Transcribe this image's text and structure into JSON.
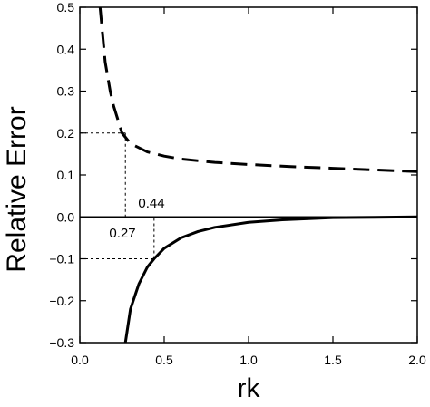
{
  "chart_data": {
    "type": "line",
    "xlabel": "rk",
    "ylabel": "Relative Error",
    "xlim": [
      0.0,
      2.0
    ],
    "ylim": [
      -0.3,
      0.5
    ],
    "x_ticks": [
      0.0,
      0.5,
      1.0,
      1.5,
      2.0
    ],
    "x_tick_labels": [
      "0.0",
      "0.5",
      "1.0",
      "1.5",
      "2.0"
    ],
    "y_ticks": [
      -0.3,
      -0.2,
      -0.1,
      0.0,
      0.1,
      0.2,
      0.3,
      0.4,
      0.5
    ],
    "y_tick_labels": [
      "−0.3",
      "−0.2",
      "−0.1",
      "0.0",
      "0.1",
      "0.2",
      "0.3",
      "0.4",
      "0.5"
    ],
    "grid": false,
    "legend": "none",
    "series": [
      {
        "style": "dashed",
        "x": [
          0.12,
          0.15,
          0.18,
          0.2,
          0.25,
          0.3,
          0.4,
          0.5,
          0.6,
          0.8,
          1.0,
          1.25,
          1.5,
          1.75,
          2.0
        ],
        "y": [
          0.5,
          0.37,
          0.3,
          0.265,
          0.2,
          0.175,
          0.155,
          0.145,
          0.138,
          0.13,
          0.125,
          0.12,
          0.116,
          0.112,
          0.108
        ]
      },
      {
        "style": "solid",
        "x": [
          0.27,
          0.3,
          0.35,
          0.4,
          0.44,
          0.5,
          0.6,
          0.7,
          0.8,
          1.0,
          1.2,
          1.5,
          1.75,
          2.0
        ],
        "y": [
          -0.3,
          -0.22,
          -0.16,
          -0.12,
          -0.1,
          -0.075,
          -0.05,
          -0.035,
          -0.025,
          -0.013,
          -0.007,
          -0.002,
          -0.001,
          0.0
        ]
      }
    ],
    "annotations": {
      "zero_line_y": 0.0,
      "upper_marker": {
        "x": 0.27,
        "y": 0.2,
        "label": "0.27"
      },
      "lower_marker": {
        "x": 0.44,
        "y": -0.1,
        "label": "0.44"
      }
    },
    "colors": {
      "line": "#000000",
      "background": "#ffffff"
    }
  }
}
